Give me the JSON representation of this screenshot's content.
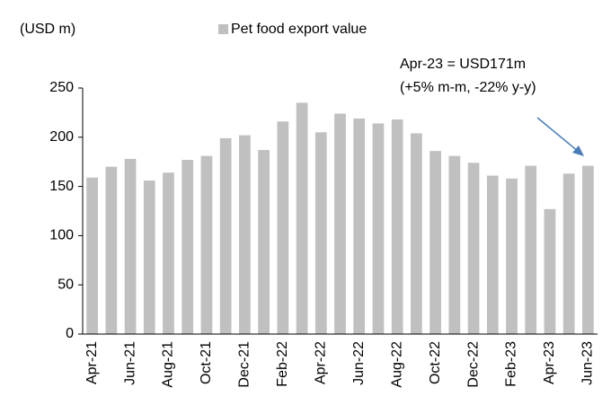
{
  "chart_data": {
    "type": "bar",
    "y_label": "(USD m)",
    "annotation": [
      "Apr-23 = USD171m",
      "(+5% m-m, -22% y-y)"
    ],
    "categories": [
      "Apr-21",
      null,
      "Jun-21",
      null,
      "Aug-21",
      null,
      "Oct-21",
      null,
      "Dec-21",
      null,
      "Feb-22",
      null,
      "Apr-22",
      null,
      "Jun-22",
      null,
      "Aug-22",
      null,
      "Oct-22",
      null,
      "Dec-22",
      null,
      "Feb-23",
      null,
      "Apr-23",
      null,
      "Jun-23"
    ],
    "series": [
      {
        "name": "Pet food export value",
        "color": "#c0c0c0",
        "values": [
          159,
          170,
          178,
          156,
          164,
          177,
          181,
          199,
          202,
          187,
          216,
          235,
          205,
          224,
          219,
          214,
          218,
          204,
          186,
          181,
          174,
          161,
          158,
          171,
          127,
          163,
          171
        ]
      }
    ],
    "ylim": [
      0,
      250
    ],
    "yticks": [
      0,
      50,
      100,
      150,
      200,
      250
    ],
    "grid": false
  }
}
